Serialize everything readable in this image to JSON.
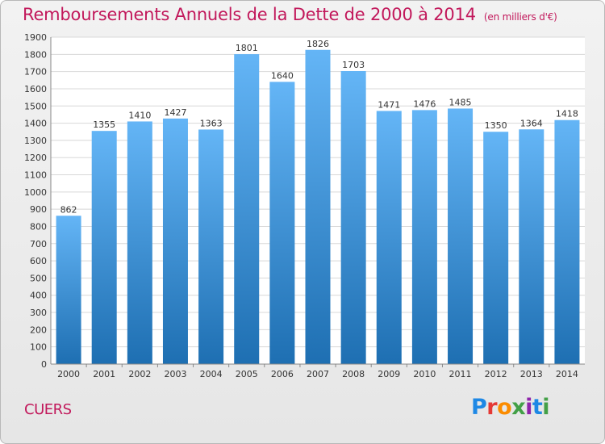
{
  "header": {
    "title": "Remboursements Annuels de la Dette de 2000 à 2014",
    "unit": "(en milliers d'€)"
  },
  "footer": {
    "city": "CUERS",
    "brand": "Proxiti",
    "brand_colors": [
      "#1e88e5",
      "#e53935",
      "#fb8c00",
      "#43a047",
      "#8e24aa",
      "#1e88e5",
      "#43a047"
    ]
  },
  "colors": {
    "bar_top": "#64b5f6",
    "bar_bottom": "#1e6fb2",
    "title": "#c2185b",
    "grid": "#d8d8d8"
  },
  "chart_data": {
    "type": "bar",
    "title": "Remboursements Annuels de la Dette de 2000 à 2014",
    "subtitle": "(en milliers d'€)",
    "categories": [
      "2000",
      "2001",
      "2002",
      "2003",
      "2004",
      "2005",
      "2006",
      "2007",
      "2008",
      "2009",
      "2010",
      "2011",
      "2012",
      "2013",
      "2014"
    ],
    "values": [
      862,
      1355,
      1410,
      1427,
      1363,
      1801,
      1640,
      1826,
      1703,
      1471,
      1476,
      1485,
      1350,
      1364,
      1418
    ],
    "ylim": [
      0,
      1900
    ],
    "yticks": [
      0,
      100,
      200,
      300,
      400,
      500,
      600,
      700,
      800,
      900,
      1000,
      1100,
      1200,
      1300,
      1400,
      1500,
      1600,
      1700,
      1800,
      1900
    ],
    "grid": true,
    "legend": "none"
  }
}
